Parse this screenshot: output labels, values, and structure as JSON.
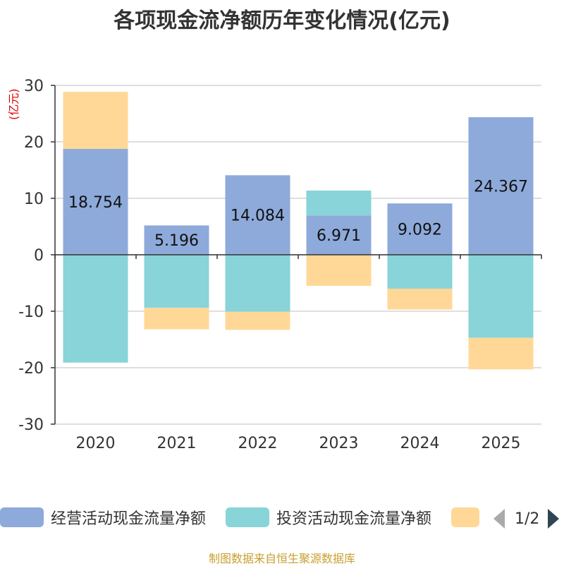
{
  "chart_data": {
    "type": "bar",
    "stacked": true,
    "title": "各项现金流净额历年变化情况(亿元)",
    "ylabel": "(亿元)",
    "ylim": [
      -30,
      30
    ],
    "yticks": [
      30,
      20,
      10,
      0,
      -10,
      -20,
      -30
    ],
    "categories": [
      "2020",
      "2021",
      "2022",
      "2023",
      "2024",
      "2025"
    ],
    "series": [
      {
        "name": "经营活动现金流量净额",
        "color": "#8eaadb",
        "values": [
          18.754,
          5.196,
          14.084,
          6.971,
          9.092,
          24.367
        ],
        "labels": [
          "18.754",
          "5.196",
          "14.084",
          "6.971",
          "9.092",
          "24.367"
        ]
      },
      {
        "name": "投资活动现金流量净额",
        "color": "#88d4d8",
        "values": [
          -19.1,
          -9.4,
          -10.1,
          4.4,
          -6.0,
          -14.7
        ]
      },
      {
        "name": "",
        "color": "#ffd898",
        "values": [
          10.1,
          -3.8,
          -3.2,
          -5.5,
          -3.7,
          -5.6
        ]
      }
    ]
  },
  "legend": {
    "items": [
      {
        "label": "经营活动现金流量净额",
        "color": "#8eaadb"
      },
      {
        "label": "投资活动现金流量净额",
        "color": "#88d4d8"
      },
      {
        "label": "",
        "color": "#ffd898"
      }
    ],
    "page": "1/2"
  },
  "footer": "制图数据来自恒生聚源数据库"
}
